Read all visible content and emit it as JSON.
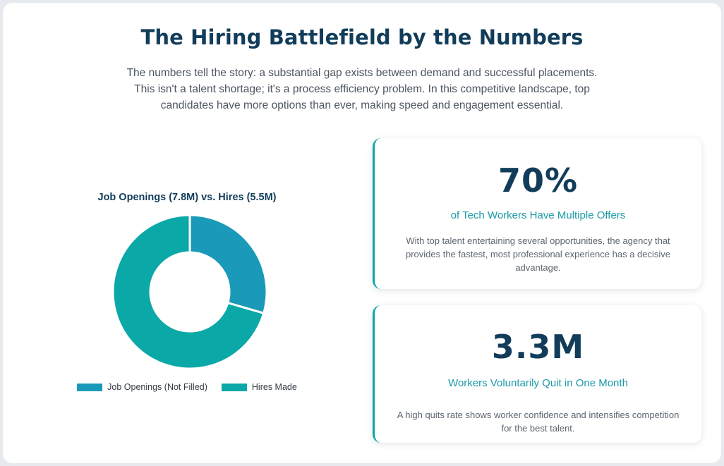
{
  "header": {
    "title": "The Hiring Battlefield by the Numbers",
    "intro": "The numbers tell the story: a substantial gap exists between demand and successful placements. This isn't a talent shortage; it's a process efficiency problem. In this competitive landscape, top candidates have more options than ever, making speed and engagement essential."
  },
  "chart_data": {
    "type": "doughnut",
    "title": "Job Openings (7.8M) vs. Hires (5.5M)",
    "categories": [
      "Job Openings (Not Filled)",
      "Hires Made"
    ],
    "values": [
      2.3,
      5.5
    ],
    "colors": [
      "#1a9ab8",
      "#0aa8a6"
    ],
    "legend_position": "bottom"
  },
  "stats": [
    {
      "value": "70%",
      "label": "of Tech Workers Have Multiple Offers",
      "description": "With top talent entertaining several opportunities, the agency that provides the fastest, most professional experience has a decisive advantage."
    },
    {
      "value": "3.3M",
      "label": "Workers Voluntarily Quit in One Month",
      "description": "A high quits rate shows worker confidence and intensifies competition for the best talent."
    }
  ]
}
